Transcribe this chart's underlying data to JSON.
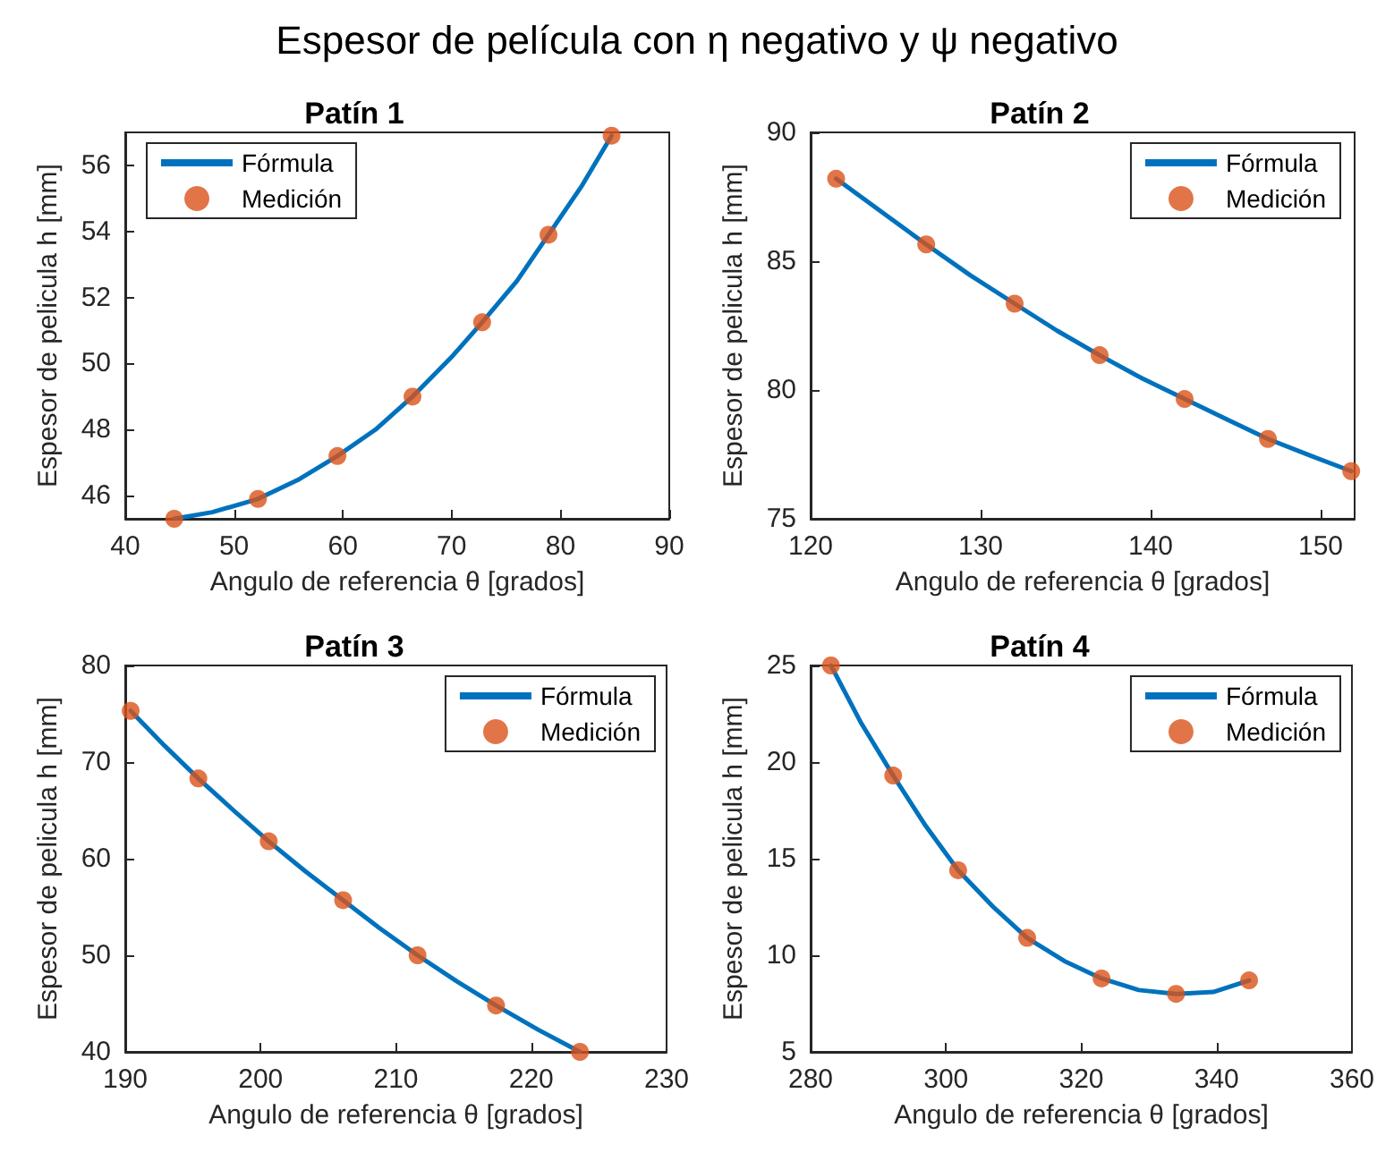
{
  "chart_data": [
    {
      "type": "line",
      "title": "Patín 1",
      "xlabel": "Angulo de referencia θ [grados]",
      "ylabel": "Espesor de pelicula h [mm]",
      "annotations": [
        "Espesor de película con η negativo y ψ negativo"
      ],
      "xlim": [
        40,
        90
      ],
      "xticks": [
        40,
        50,
        60,
        70,
        80,
        90
      ],
      "ylim": [
        45.3,
        57
      ],
      "yticks": [
        46,
        48,
        50,
        52,
        54,
        56
      ],
      "grid": false,
      "legend": "top left",
      "series": [
        {
          "name": "Fórmula",
          "color": "#0072bd",
          "marker": "none",
          "line_style": "solid",
          "x": [
            44.5,
            48,
            52.2,
            56,
            59.5,
            63,
            66.4,
            70,
            72.8,
            76,
            78.9,
            82,
            84.7
          ],
          "values": [
            45.3,
            45.5,
            45.9,
            46.5,
            47.2,
            48.0,
            49.0,
            50.2,
            51.25,
            52.5,
            53.9,
            55.4,
            56.9
          ]
        },
        {
          "name": "Medición",
          "type": "scatter",
          "color": "#d95319",
          "marker": "circle",
          "x": [
            44.5,
            52.2,
            59.5,
            66.4,
            72.8,
            78.9,
            84.7
          ],
          "values": [
            45.3,
            45.9,
            47.2,
            49.0,
            51.25,
            53.9,
            56.9
          ]
        }
      ]
    },
    {
      "type": "line",
      "title": "Patín 2",
      "xlabel": "Angulo de referencia θ [grados]",
      "ylabel": "Espesor de pelicula h [mm]",
      "xlim": [
        120,
        152
      ],
      "xticks": [
        120,
        130,
        140,
        150
      ],
      "ylim": [
        75,
        90
      ],
      "yticks": [
        75,
        80,
        85,
        90
      ],
      "grid": false,
      "legend": "top right",
      "series": [
        {
          "name": "Fórmula",
          "color": "#0072bd",
          "marker": "none",
          "line_style": "solid",
          "x": [
            121.5,
            124.2,
            126.8,
            129.4,
            132,
            134.5,
            137,
            139.5,
            142,
            144.5,
            146.9,
            149.4,
            151.8
          ],
          "values": [
            88.2,
            86.9,
            85.65,
            84.45,
            83.35,
            82.3,
            81.35,
            80.45,
            79.65,
            78.85,
            78.1,
            77.45,
            76.85
          ]
        },
        {
          "name": "Medición",
          "type": "scatter",
          "color": "#d95319",
          "marker": "circle",
          "x": [
            121.5,
            126.8,
            132,
            137,
            142,
            146.9,
            151.8
          ],
          "values": [
            88.2,
            85.65,
            83.35,
            81.35,
            79.65,
            78.1,
            76.85
          ]
        }
      ]
    },
    {
      "type": "line",
      "title": "Patín 3",
      "xlabel": "Angulo de referencia θ [grados]",
      "ylabel": "Espesor de pelicula h [mm]",
      "xlim": [
        190,
        230
      ],
      "xticks": [
        190,
        200,
        210,
        220,
        230
      ],
      "ylim": [
        40,
        80
      ],
      "yticks": [
        40,
        50,
        60,
        70,
        80
      ],
      "grid": false,
      "legend": "top right",
      "series": [
        {
          "name": "Fórmula",
          "color": "#0072bd",
          "marker": "none",
          "line_style": "solid",
          "x": [
            190.4,
            192.9,
            195.4,
            198,
            200.6,
            203.3,
            206.1,
            208.8,
            211.6,
            214.5,
            217.4,
            220.5,
            223.6
          ],
          "values": [
            75.3,
            71.7,
            68.3,
            65.0,
            61.8,
            58.7,
            55.7,
            52.8,
            50.0,
            47.3,
            44.8,
            42.3,
            40.0
          ]
        },
        {
          "name": "Medición",
          "type": "scatter",
          "color": "#d95319",
          "marker": "circle",
          "x": [
            190.4,
            195.4,
            200.6,
            206.1,
            211.6,
            217.4,
            223.6
          ],
          "values": [
            75.3,
            68.3,
            61.8,
            55.7,
            50.0,
            44.8,
            40.0
          ]
        }
      ]
    },
    {
      "type": "line",
      "title": "Patín 4",
      "xlabel": "Angulo de referencia θ [grados]",
      "ylabel": "Espesor de pelicula h [mm]",
      "xlim": [
        280,
        360
      ],
      "xticks": [
        280,
        300,
        320,
        340,
        360
      ],
      "ylim": [
        5,
        25
      ],
      "yticks": [
        5,
        10,
        15,
        20,
        25
      ],
      "grid": false,
      "legend": "top right",
      "series": [
        {
          "name": "Fórmula",
          "color": "#0072bd",
          "marker": "none",
          "line_style": "solid",
          "x": [
            283,
            287.5,
            292.2,
            297,
            301.8,
            307,
            312,
            317.5,
            323,
            328.5,
            334,
            339.5,
            344.8
          ],
          "values": [
            25.0,
            22.0,
            19.3,
            16.7,
            14.4,
            12.5,
            10.9,
            9.7,
            8.8,
            8.2,
            8.0,
            8.1,
            8.7
          ]
        },
        {
          "name": "Medición",
          "type": "scatter",
          "color": "#d95319",
          "marker": "circle",
          "x": [
            283,
            292.2,
            301.8,
            312,
            323,
            334,
            344.8
          ],
          "values": [
            25.0,
            19.3,
            14.4,
            10.9,
            8.8,
            8.0,
            8.7
          ]
        }
      ]
    }
  ]
}
